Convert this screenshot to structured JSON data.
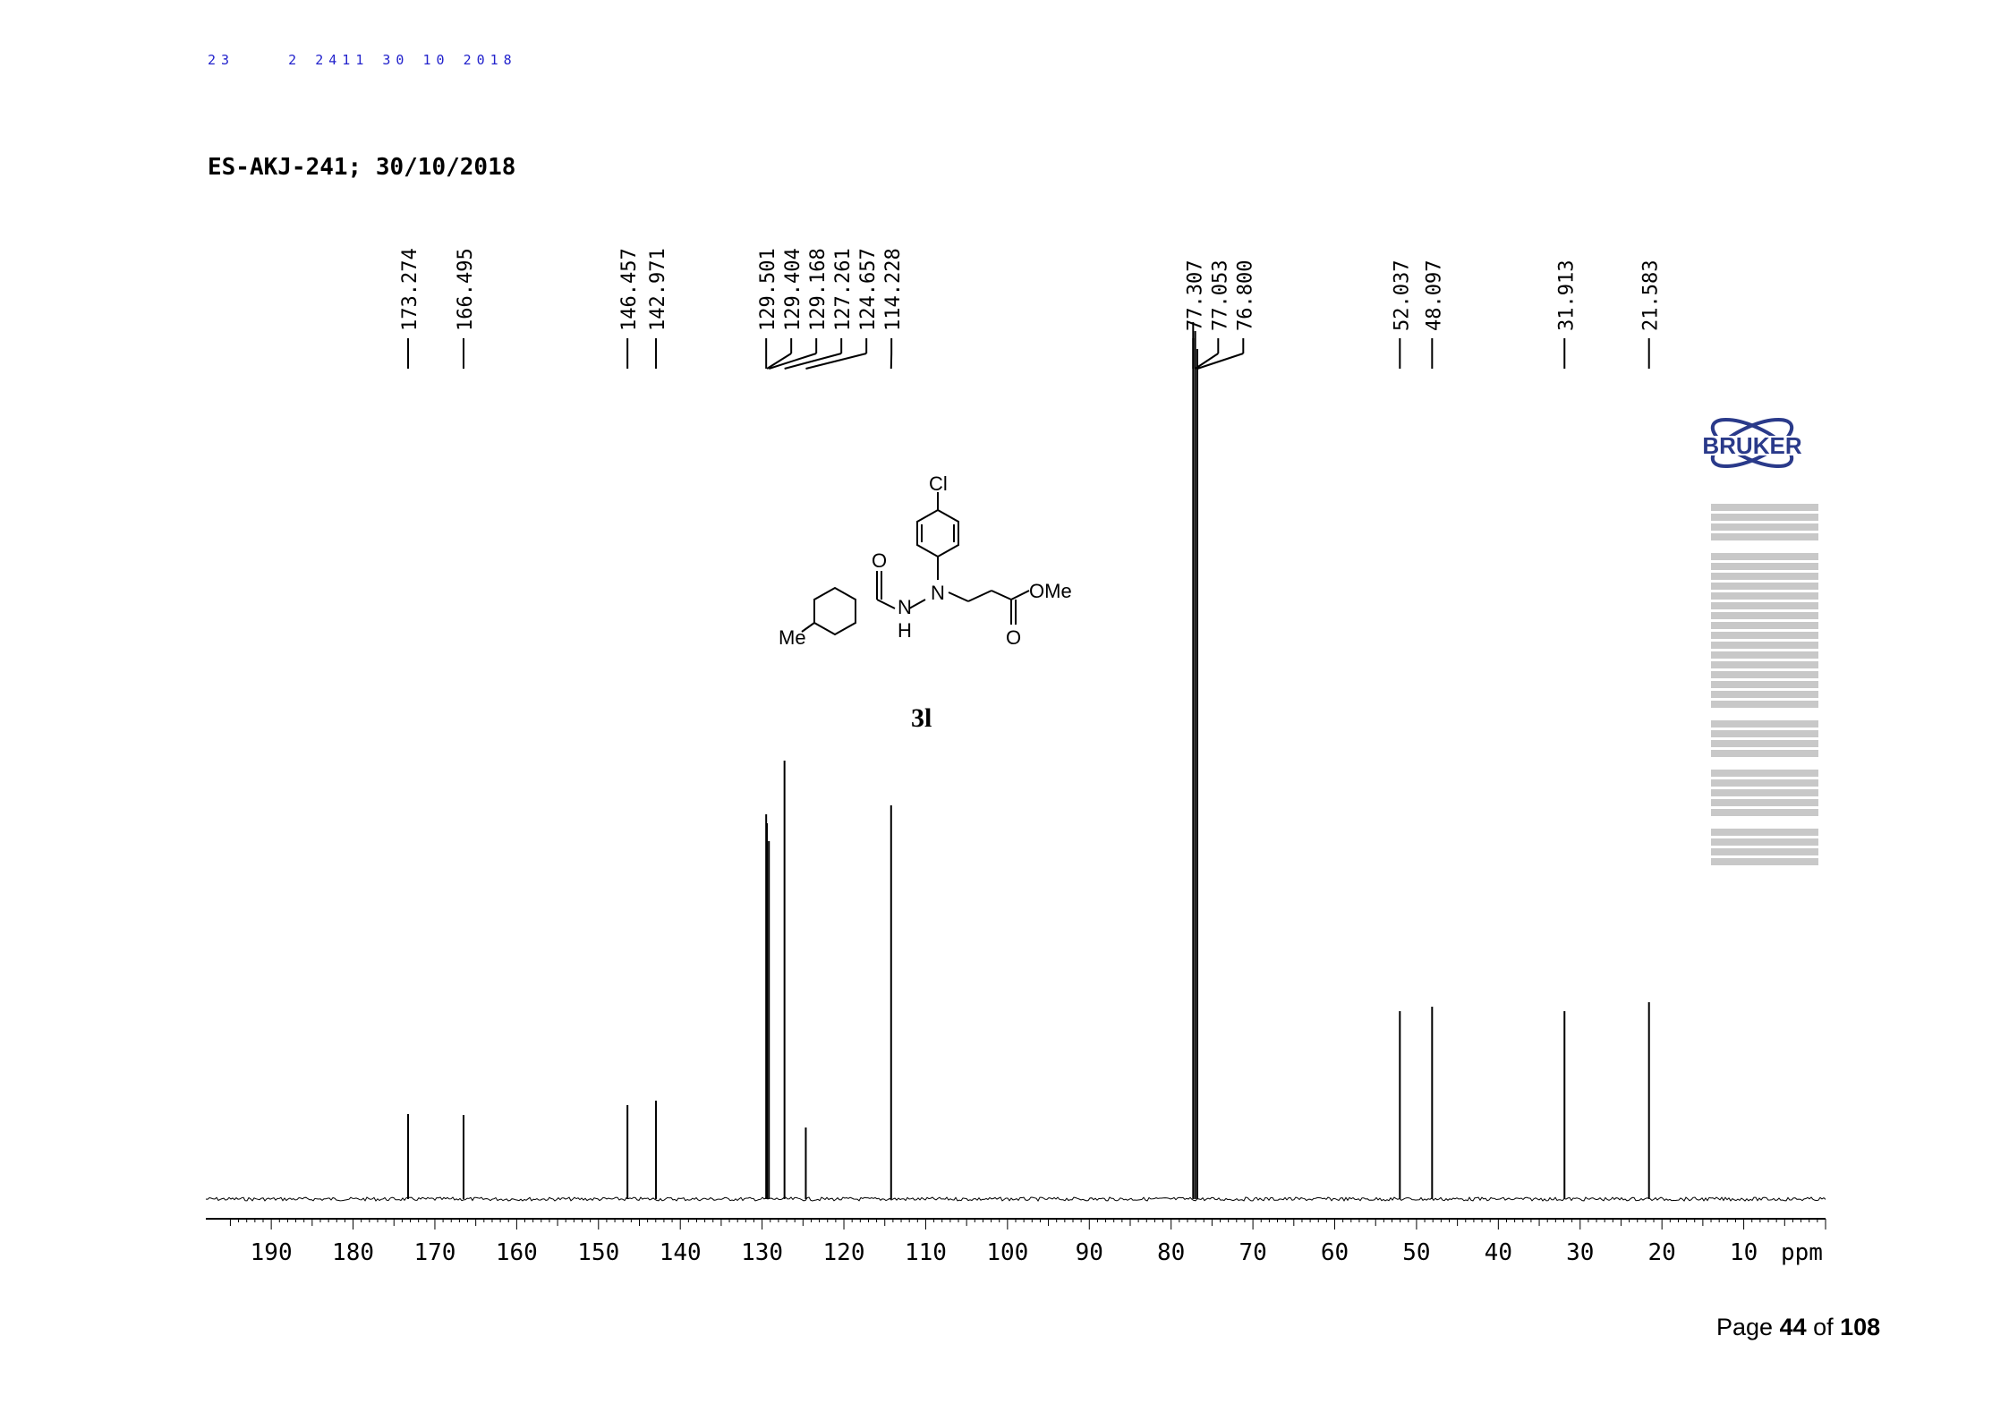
{
  "header": {
    "top_note": "23    2 2411 30 10 2018",
    "sample_title": "ES-AKJ-241; 30/10/2018"
  },
  "structure": {
    "compound_label": "3l",
    "atoms": {
      "cl": "Cl",
      "o1": "O",
      "n1": "N",
      "n2": "N",
      "h": "H",
      "ome": "OMe",
      "o2": "O",
      "me": "Me"
    }
  },
  "footer": {
    "page_prefix": "Page ",
    "page_number": "44",
    "of_text": " of ",
    "page_total": "108"
  },
  "colors": {
    "spectrum": "#000000",
    "annotation": "#2222cc"
  },
  "chart_data": {
    "type": "line",
    "title": "",
    "xlabel": "ppm",
    "xlim": [
      198,
      0
    ],
    "x_reversed": true,
    "grid": false,
    "x_tick_labels": [
      "190",
      "180",
      "170",
      "160",
      "150",
      "140",
      "130",
      "120",
      "110",
      "100",
      "90",
      "80",
      "70",
      "60",
      "50",
      "40",
      "30",
      "20",
      "10"
    ],
    "peak_labels": [
      "173.274",
      "166.495",
      "146.457",
      "142.971",
      "129.501",
      "129.404",
      "129.168",
      "127.261",
      "124.657",
      "114.228",
      "77.307",
      "77.053",
      "76.800",
      "52.037",
      "48.097",
      "31.913",
      "21.583"
    ],
    "peaks": [
      {
        "x": 173.274,
        "y": 0.095
      },
      {
        "x": 166.495,
        "y": 0.094
      },
      {
        "x": 146.457,
        "y": 0.105
      },
      {
        "x": 142.971,
        "y": 0.11
      },
      {
        "x": 129.501,
        "y": 0.43
      },
      {
        "x": 129.404,
        "y": 0.42
      },
      {
        "x": 129.168,
        "y": 0.4
      },
      {
        "x": 127.261,
        "y": 0.49
      },
      {
        "x": 124.657,
        "y": 0.08
      },
      {
        "x": 114.228,
        "y": 0.44
      },
      {
        "x": 77.307,
        "y": 0.98
      },
      {
        "x": 77.053,
        "y": 0.97
      },
      {
        "x": 76.8,
        "y": 0.95
      },
      {
        "x": 52.037,
        "y": 0.21
      },
      {
        "x": 48.097,
        "y": 0.215
      },
      {
        "x": 31.913,
        "y": 0.21
      },
      {
        "x": 21.583,
        "y": 0.22
      }
    ]
  }
}
